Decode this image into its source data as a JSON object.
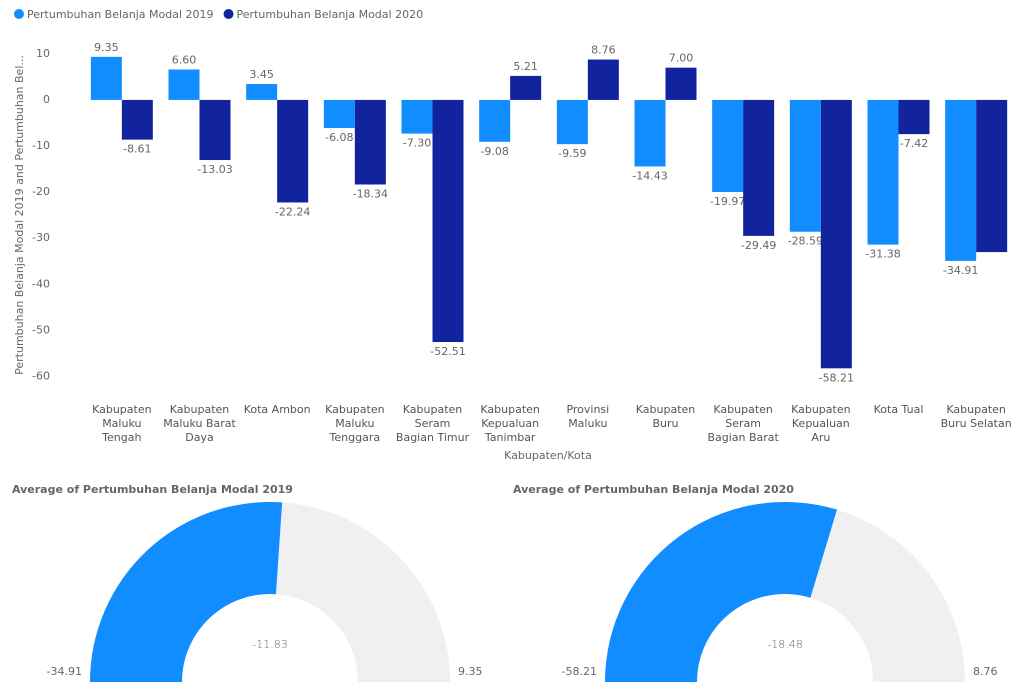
{
  "chart_data": [
    {
      "type": "bar",
      "y_label": "Pertumbuhan Belanja Modal 2019 and Pertumbuhan Bel...",
      "x_label": "Kabupaten/Kota",
      "categories": [
        "Kabupaten Maluku Tengah",
        "Kabupaten Maluku Barat Daya",
        "Kota Ambon",
        "Kabupaten Maluku Tenggara",
        "Kabupaten Seram Bagian Timur",
        "Kabupaten Kepualuan Tanimbar",
        "Provinsi Maluku",
        "Kabupaten Buru",
        "Kabupaten Seram Bagian Barat",
        "Kabupaten Kepualuan Aru",
        "Kota Tual",
        "Kabupaten Buru Selatan"
      ],
      "series": [
        {
          "name": "Pertumbuhan Belanja Modal 2019",
          "color": "#118dff",
          "values": [
            9.35,
            6.6,
            3.45,
            -6.08,
            -7.3,
            -9.08,
            -9.59,
            -14.43,
            -19.97,
            -28.59,
            -31.38,
            -34.91
          ],
          "value_labels": [
            "9.35",
            "6.60",
            "3.45",
            "-6.08",
            "-7.30",
            "-9.08",
            "-9.59",
            "-14.43",
            "-19.97",
            "-28.59",
            "-31.38",
            "-34.91"
          ]
        },
        {
          "name": "Pertumbuhan Belanja Modal 2020",
          "color": "#12239e",
          "values": [
            -8.61,
            -13.03,
            -22.24,
            -18.34,
            -52.51,
            5.21,
            8.76,
            7,
            -29.49,
            -58.21,
            -7.42,
            -33
          ],
          "value_labels": [
            "-8.61",
            "-13.03",
            "-22.24",
            "-18.34",
            "-52.51",
            "5.21",
            "8.76",
            "7.00",
            "-29.49",
            "-58.21",
            "-7.42",
            null
          ]
        }
      ],
      "ylim": [
        -64,
        13
      ],
      "yticks": [
        10,
        0,
        -10,
        -20,
        -30,
        -40,
        -50,
        -60
      ],
      "grid": false,
      "legend": "top-left"
    },
    {
      "type": "gauge",
      "title": "Average of Pertumbuhan Belanja Modal 2019",
      "value": -11.83,
      "min": -34.91,
      "max": 9.35,
      "color": "#118dff",
      "track_color": "#f0f0f0"
    },
    {
      "type": "gauge",
      "title": "Average of Pertumbuhan Belanja Modal 2020",
      "value": -18.48,
      "min": -58.21,
      "max": 8.76,
      "color": "#118dff",
      "track_color": "#f0f0f0"
    }
  ]
}
